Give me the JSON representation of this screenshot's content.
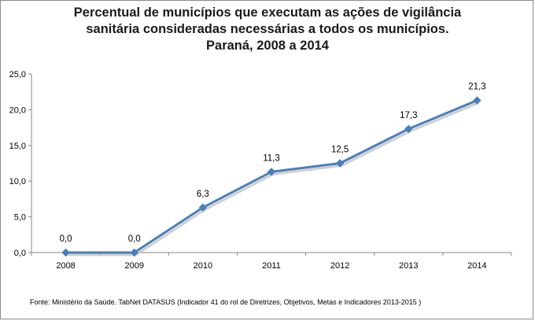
{
  "chart_data": {
    "type": "line",
    "title_lines": [
      "Percentual de municípios que executam as ações de vigilância",
      "sanitária consideradas necessárias a todos os municípios.",
      "Paraná, 2008 a 2014"
    ],
    "categories": [
      "2008",
      "2009",
      "2010",
      "2011",
      "2012",
      "2013",
      "2014"
    ],
    "values": [
      0.0,
      0.0,
      6.3,
      11.3,
      12.5,
      17.3,
      21.3
    ],
    "data_labels": [
      "0,0",
      "0,0",
      "6,3",
      "11,3",
      "12,5",
      "17,3",
      "21,3"
    ],
    "y_ticks": [
      0,
      5,
      10,
      15,
      20,
      25
    ],
    "y_tick_labels": [
      "0,0",
      "5,0",
      "10,0",
      "15,0",
      "20,0",
      "25,0"
    ],
    "ylim": [
      0,
      25
    ],
    "xlabel": "",
    "ylabel": "",
    "grid": false,
    "legend": "none",
    "series_color": "#4a7ebb",
    "shadow_color": "#c3c3c3"
  },
  "source_note": "Fonte: Ministério da Saúde. TabNet DATASUS (Indicador 41 do rol de Diretrizes, Objetivos, Metas e Indicadores 2013-2015 )"
}
